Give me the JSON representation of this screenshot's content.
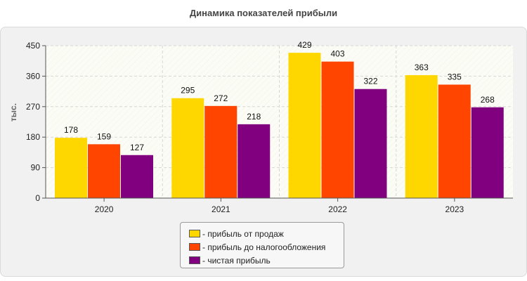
{
  "title": "Динамика показателей прибыли",
  "chart_data": {
    "type": "bar",
    "title": "Динамика показателей прибыли",
    "xlabel": "",
    "ylabel": "тыс.",
    "categories": [
      "2020",
      "2021",
      "2022",
      "2023"
    ],
    "series": [
      {
        "name": "- прибыль от продаж",
        "color": "#FFD700",
        "values": [
          178,
          295,
          429,
          363
        ]
      },
      {
        "name": "- прибыль до налогообложения",
        "color": "#FF4500",
        "values": [
          159,
          272,
          403,
          335
        ]
      },
      {
        "name": "- чистая прибыль",
        "color": "#800080",
        "values": [
          127,
          218,
          322,
          268
        ]
      }
    ],
    "ylim": [
      0,
      450
    ],
    "yticks": [
      0,
      90,
      180,
      270,
      360,
      450
    ],
    "grid": true,
    "legend_position": "bottom-center",
    "data_labels": true
  }
}
